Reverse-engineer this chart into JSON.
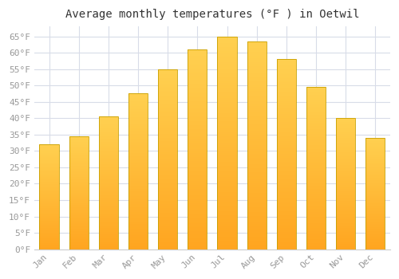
{
  "title": "Average monthly temperatures (°F ) in Oetwil",
  "months": [
    "Jan",
    "Feb",
    "Mar",
    "Apr",
    "May",
    "Jun",
    "Jul",
    "Aug",
    "Sep",
    "Oct",
    "Nov",
    "Dec"
  ],
  "values": [
    32,
    34.5,
    40.5,
    47.5,
    55,
    61,
    65,
    63.5,
    58,
    49.5,
    40,
    34
  ],
  "bar_color_bottom": "#FFA520",
  "bar_color_top": "#FFD050",
  "bar_edge_color": "#C8A000",
  "background_color": "#FFFFFF",
  "grid_color": "#D8DCE8",
  "yticks": [
    0,
    5,
    10,
    15,
    20,
    25,
    30,
    35,
    40,
    45,
    50,
    55,
    60,
    65
  ],
  "ytick_labels": [
    "0°F",
    "5°F",
    "10°F",
    "15°F",
    "20°F",
    "25°F",
    "30°F",
    "35°F",
    "40°F",
    "45°F",
    "50°F",
    "55°F",
    "60°F",
    "65°F"
  ],
  "ylim": [
    0,
    68
  ],
  "title_fontsize": 10,
  "tick_fontsize": 8,
  "title_color": "#333333",
  "tick_color": "#999999"
}
